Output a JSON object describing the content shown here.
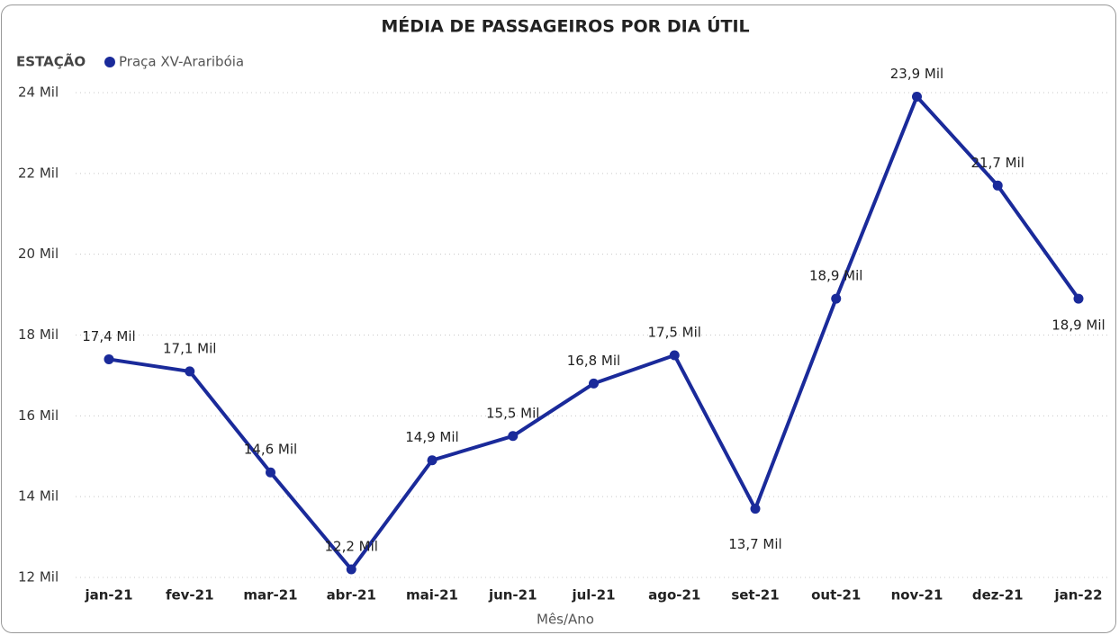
{
  "chart_data": {
    "type": "line",
    "title": "MÉDIA DE PASSAGEIROS POR DIA ÚTIL",
    "legend_title": "ESTAÇÃO",
    "x_label": "Mês/Ano",
    "categories": [
      "jan-21",
      "fev-21",
      "mar-21",
      "abr-21",
      "mai-21",
      "jun-21",
      "jul-21",
      "ago-21",
      "set-21",
      "out-21",
      "nov-21",
      "dez-21",
      "jan-22"
    ],
    "series": [
      {
        "name": "Praça XV-Araribóia",
        "color": "#1a2a9a",
        "values": [
          17400,
          17100,
          14600,
          12200,
          14900,
          15500,
          16800,
          17500,
          13700,
          18900,
          23900,
          21700,
          18900
        ],
        "value_labels": [
          "17,4 Mil",
          "17,1 Mil",
          "14,6 Mil",
          "12,2 Mil",
          "14,9 Mil",
          "15,5 Mil",
          "16,8 Mil",
          "17,5 Mil",
          "13,7 Mil",
          "18,9 Mil",
          "23,9 Mil",
          "21,7 Mil",
          "18,9 Mil"
        ]
      }
    ],
    "ylim": [
      12000,
      24000
    ],
    "yticks": [
      {
        "value": 12000,
        "label": "12 Mil"
      },
      {
        "value": 14000,
        "label": "14 Mil"
      },
      {
        "value": 16000,
        "label": "16 Mil"
      },
      {
        "value": 18000,
        "label": "18 Mil"
      },
      {
        "value": 20000,
        "label": "20 Mil"
      },
      {
        "value": 22000,
        "label": "22 Mil"
      },
      {
        "value": 24000,
        "label": "24 Mil"
      }
    ],
    "grid": true
  }
}
